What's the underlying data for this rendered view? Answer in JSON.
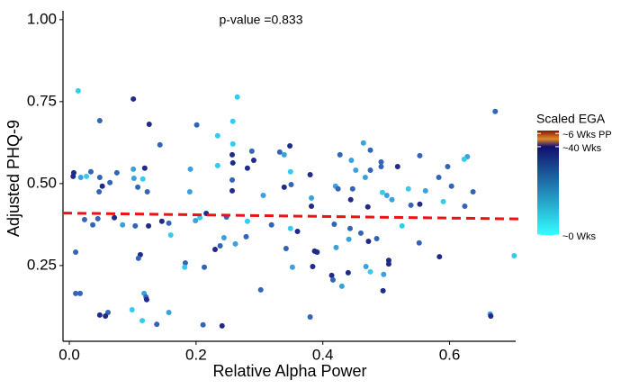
{
  "chart_data": {
    "type": "scatter",
    "annotation": "p-value =0.833",
    "x_label": "Relative Alpha Power",
    "y_label": "Adjusted PHQ-9",
    "xlim": [
      -0.01,
      0.71
    ],
    "ylim": [
      0.019,
      1.027
    ],
    "xticks": [
      {
        "value": 0,
        "label": "0.0"
      },
      {
        "value": 0.2,
        "label": "0.2"
      },
      {
        "value": 0.4,
        "label": "0.4"
      },
      {
        "value": 0.6,
        "label": "0.6"
      }
    ],
    "yticks": [
      {
        "value": 0.25,
        "label": "0.25"
      },
      {
        "value": 0.5,
        "label": "0.50"
      },
      {
        "value": 0.75,
        "label": "0.75"
      },
      {
        "value": 1,
        "label": "1.00"
      }
    ],
    "grid": false,
    "series": [
      {
        "x": [
          0.014,
          0.101,
          0.265,
          0.672,
          0.048,
          0.126,
          0.258,
          0.201,
          0.234,
          0.143,
          0.348,
          0.258,
          0.332,
          0.288,
          0.257,
          0.464,
          0.427,
          0.475,
          0.339,
          0.553,
          0.258,
          0.291,
          0.492,
          0.445,
          0.597,
          0.492,
          0.518,
          0.234,
          0.628,
          0.623,
          0.38,
          0.349,
          0.007,
          0.034,
          0.027,
          0.075,
          0.101,
          0.119,
          0.191,
          0.281,
          0.475,
          0.452,
          0.467,
          0.583,
          0.006,
          0.018,
          0.048,
          0.102,
          0.116,
          0.064,
          0.052,
          0.108,
          0.257,
          0.35,
          0.339,
          0.42,
          0.424,
          0.447,
          0.562,
          0.603,
          0.637,
          0.047,
          0.123,
          0.19,
          0.257,
          0.306,
          0.382,
          0.444,
          0.501,
          0.509,
          0.535,
          0.494,
          0.539,
          0.553,
          0.59,
          0.624,
          0.471,
          0.382,
          0.216,
          0.206,
          0.024,
          0.146,
          0.199,
          0.248,
          0.281,
          0.045,
          0.071,
          0.037,
          0.084,
          0.104,
          0.125,
          0.157,
          0.319,
          0.349,
          0.36,
          0.443,
          0.525,
          0.418,
          0.46,
          0.441,
          0.472,
          0.485,
          0.16,
          0.244,
          0.279,
          0.262,
          0.23,
          0.238,
          0.342,
          0.387,
          0.391,
          0.421,
          0.552,
          0.112,
          0.109,
          0.01,
          0.352,
          0.183,
          0.182,
          0.213,
          0.504,
          0.504,
          0.384,
          0.468,
          0.584,
          0.44,
          0.414,
          0.416,
          0.475,
          0.496,
          0.43,
          0.495,
          0.302,
          0.01,
          0.017,
          0.118,
          0.121,
          0.122,
          0.157,
          0.048,
          0.061,
          0.057,
          0.099,
          0.138,
          0.115,
          0.211,
          0.241,
          0.38,
          0.664,
          0.665,
          0.702
        ],
        "y": [
          0.783,
          0.758,
          0.764,
          0.72,
          0.692,
          0.681,
          0.69,
          0.679,
          0.646,
          0.618,
          0.615,
          0.621,
          0.596,
          0.599,
          0.588,
          0.624,
          0.588,
          0.602,
          0.588,
          0.585,
          0.563,
          0.571,
          0.566,
          0.571,
          0.552,
          0.552,
          0.552,
          0.555,
          0.582,
          0.574,
          0.527,
          0.536,
          0.533,
          0.536,
          0.522,
          0.533,
          0.544,
          0.547,
          0.544,
          0.547,
          0.541,
          0.541,
          0.519,
          0.519,
          0.522,
          0.519,
          0.519,
          0.516,
          0.514,
          0.503,
          0.492,
          0.489,
          0.511,
          0.497,
          0.489,
          0.492,
          0.484,
          0.484,
          0.478,
          0.492,
          0.475,
          0.475,
          0.475,
          0.475,
          0.478,
          0.464,
          0.456,
          0.451,
          0.464,
          0.451,
          0.484,
          0.473,
          0.434,
          0.437,
          0.445,
          0.431,
          0.429,
          0.431,
          0.409,
          0.396,
          0.39,
          0.385,
          0.387,
          0.398,
          0.385,
          0.393,
          0.396,
          0.374,
          0.374,
          0.371,
          0.371,
          0.379,
          0.374,
          0.363,
          0.354,
          0.363,
          0.371,
          0.376,
          0.349,
          0.33,
          0.324,
          0.332,
          0.343,
          0.335,
          0.338,
          0.316,
          0.299,
          0.31,
          0.302,
          0.294,
          0.291,
          0.305,
          0.319,
          0.283,
          0.272,
          0.291,
          0.245,
          0.258,
          0.245,
          0.245,
          0.266,
          0.255,
          0.247,
          0.247,
          0.277,
          0.228,
          0.22,
          0.206,
          0.231,
          0.223,
          0.187,
          0.173,
          0.176,
          0.165,
          0.165,
          0.165,
          0.154,
          0.146,
          0.107,
          0.099,
          0.107,
          0.096,
          0.115,
          0.071,
          0.082,
          0.069,
          0.066,
          0.093,
          0.102,
          0.096,
          0.28
        ],
        "colors": [
          "#33ccee",
          "#1f2a8a",
          "#33ccee",
          "#3264b8",
          "#3264b8",
          "#1f2a8a",
          "#33ccee",
          "#3264b8",
          "#33ccee",
          "#3264b8",
          "#1f2a8a",
          "#33ccee",
          "#3264b8",
          "#3264b8",
          "#1f2a8a",
          "#3aa0e0",
          "#3264b8",
          "#3264b8",
          "#3aa0e0",
          "#3264b8",
          "#1f2a8a",
          "#1f2a8a",
          "#3264b8",
          "#3aa0e0",
          "#3264b8",
          "#3264b8",
          "#1f2a8a",
          "#33ccee",
          "#3aa0e0",
          "#33ccee",
          "#1f2a8a",
          "#33ccee",
          "#1f2a8a",
          "#3264b8",
          "#33ccee",
          "#3264b8",
          "#3aa0e0",
          "#1f2a8a",
          "#3aa0e0",
          "#1f2a8a",
          "#3264b8",
          "#3aa0e0",
          "#3aa0e0",
          "#3264b8",
          "#1f2a8a",
          "#3aa0e0",
          "#3264b8",
          "#3aa0e0",
          "#33ccee",
          "#3264b8",
          "#1f2a8a",
          "#3264b8",
          "#3264b8",
          "#3264b8",
          "#1f2a8a",
          "#3aa0e0",
          "#3264b8",
          "#3264b8",
          "#3aa0e0",
          "#3264b8",
          "#3264b8",
          "#3264b8",
          "#3264b8",
          "#3aa0e0",
          "#1f2a8a",
          "#3aa0e0",
          "#3aa0e0",
          "#1f2a8a",
          "#3aa0e0",
          "#3aa0e0",
          "#33ccee",
          "#33ccee",
          "#3264b8",
          "#1f2a8a",
          "#33ccee",
          "#3264b8",
          "#1f2a8a",
          "#1f2a8a",
          "#1f2a8a",
          "#33ccee",
          "#3264b8",
          "#1f2a8a",
          "#3aa0e0",
          "#3264b8",
          "#33ccee",
          "#3264b8",
          "#1f2a8a",
          "#3264b8",
          "#3aa0e0",
          "#3264b8",
          "#1f2a8a",
          "#3264b8",
          "#3264b8",
          "#33ccee",
          "#1f2a8a",
          "#3264b8",
          "#33ccee",
          "#3264b8",
          "#3264b8",
          "#3aa0e0",
          "#1f2a8a",
          "#3264b8",
          "#33ccee",
          "#3aa0e0",
          "#3264b8",
          "#3aa0e0",
          "#1f2a8a",
          "#3264b8",
          "#3264b8",
          "#1f2a8a",
          "#1f2a8a",
          "#3aa0e0",
          "#3264b8",
          "#1f2a8a",
          "#3264b8",
          "#3264b8",
          "#3aa0e0",
          "#3264b8",
          "#33ccee",
          "#3264b8",
          "#1f2a8a",
          "#1f2a8a",
          "#1f2a8a",
          "#3aa0e0",
          "#1f2a8a",
          "#1f2a8a",
          "#1f2a8a",
          "#3264b8",
          "#33ccee",
          "#3aa0e0",
          "#3aa0e0",
          "#1f2a8a",
          "#3264b8",
          "#3264b8",
          "#3264b8",
          "#3aa0e0",
          "#3264b8",
          "#1f2a8a",
          "#3aa0e0",
          "#1f2a8a",
          "#3264b8",
          "#1f2a8a",
          "#33ccee",
          "#3264b8",
          "#33ccee",
          "#3264b8",
          "#1f2a8a",
          "#3264b8",
          "#3aa0e0",
          "#1f2a8a",
          "#33ccee"
        ]
      }
    ],
    "trend": {
      "x": [
        -0.01,
        0.71
      ],
      "y": [
        0.41,
        0.392
      ],
      "color": "#ee1111"
    },
    "colorbar": {
      "title": "Scaled EGA",
      "lim": [
        0,
        47.3
      ],
      "ticks": [
        {
          "value": 0,
          "label": "~0 Wks"
        },
        {
          "value": 40,
          "label": "~40 Wks"
        },
        {
          "value": 46,
          "label": "~6 Wks PP"
        }
      ],
      "stops": [
        {
          "value": 0,
          "color": "#33ffff"
        },
        {
          "value": 40,
          "color": "#10106e"
        },
        {
          "value": 43.5,
          "color": "#e08a2a"
        },
        {
          "value": 47.3,
          "color": "#7a1a0a"
        }
      ]
    }
  }
}
